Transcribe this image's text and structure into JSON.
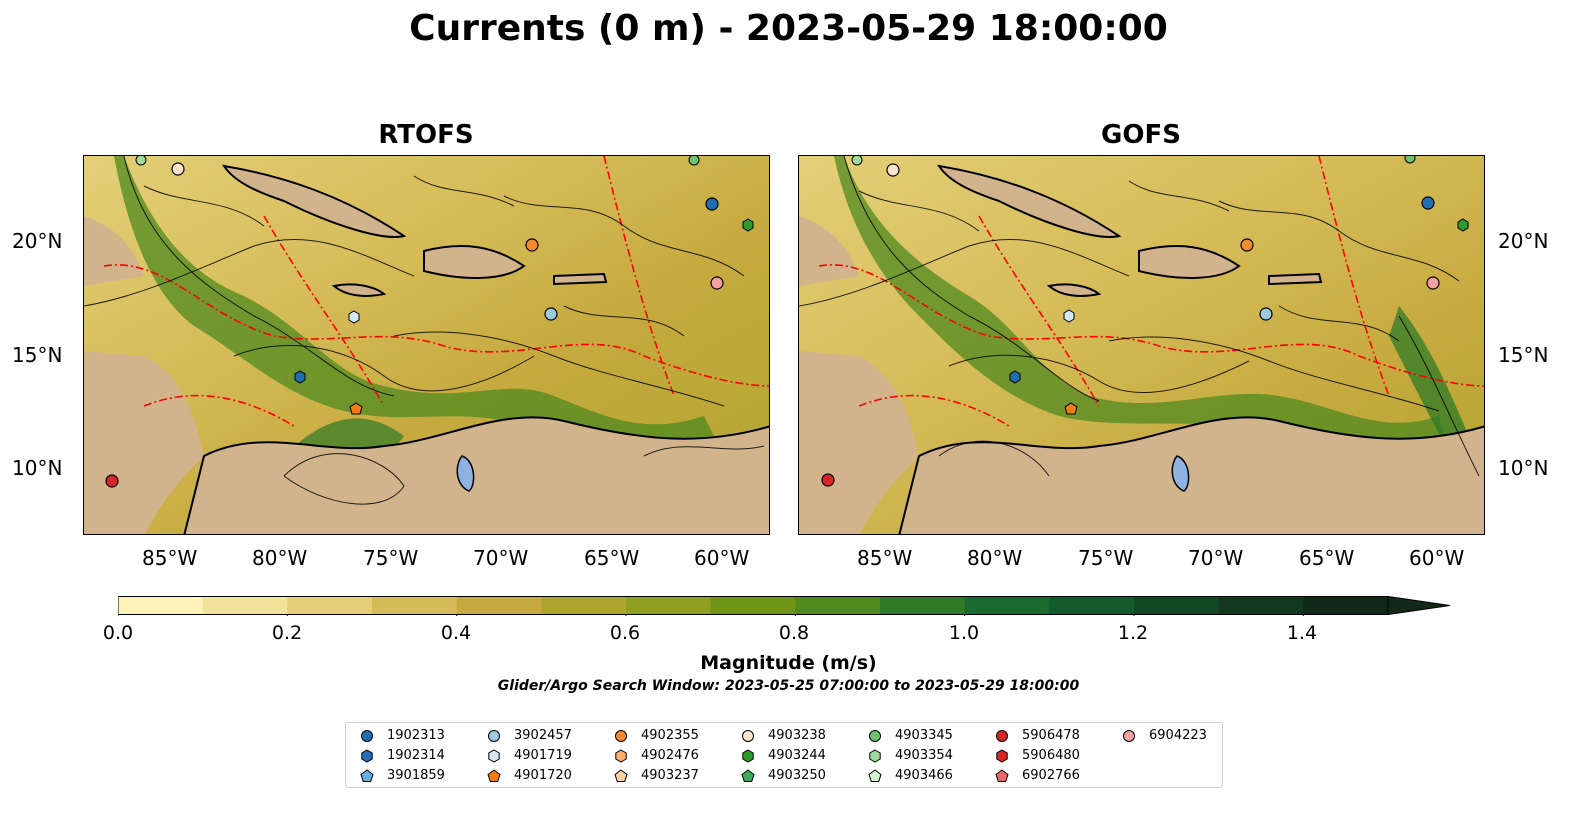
{
  "title": "Currents (0 m) - 2023-05-29 18:00:00",
  "panels": [
    {
      "title": "RTOFS"
    },
    {
      "title": "GOFS"
    }
  ],
  "axes": {
    "lon_labels": [
      "85°W",
      "80°W",
      "75°W",
      "70°W",
      "65°W",
      "60°W"
    ],
    "lat_labels": [
      "20°N",
      "15°N",
      "10°N"
    ]
  },
  "colorbar": {
    "label": "Magnitude (m/s)",
    "tick_labels": [
      "0.0",
      "0.2",
      "0.4",
      "0.6",
      "0.8",
      "1.0",
      "1.2",
      "1.4"
    ],
    "colors": [
      "#fdf3b9",
      "#f1e29a",
      "#e4cf78",
      "#d5bc58",
      "#c6aa3f",
      "#aea52c",
      "#8fa01e",
      "#6f9416",
      "#4f8a1f",
      "#2f7b27",
      "#1b6a2f",
      "#145b2c",
      "#124826",
      "#12391f",
      "#12291a"
    ]
  },
  "search_window": "Glider/Argo Search Window: 2023-05-25 07:00:00 to 2023-05-29 18:00:00",
  "legend": [
    {
      "id": "1902313",
      "marker": "circle",
      "color": "#1f6fb2"
    },
    {
      "id": "1902314",
      "marker": "hexagon",
      "color": "#1f6fb2"
    },
    {
      "id": "3901859",
      "marker": "pentagon",
      "color": "#6aaedb"
    },
    {
      "id": "3902457",
      "marker": "circle",
      "color": "#9ecae1"
    },
    {
      "id": "4901719",
      "marker": "hexagon",
      "color": "#d2e8f5"
    },
    {
      "id": "4901720",
      "marker": "pentagon",
      "color": "#f07c12"
    },
    {
      "id": "4902355",
      "marker": "circle",
      "color": "#f08c2e"
    },
    {
      "id": "4902476",
      "marker": "hexagon",
      "color": "#fdae6b"
    },
    {
      "id": "4903237",
      "marker": "pentagon",
      "color": "#fdd0a2"
    },
    {
      "id": "4903238",
      "marker": "circle",
      "color": "#fde4cd"
    },
    {
      "id": "4903244",
      "marker": "hexagon",
      "color": "#2c9a2c"
    },
    {
      "id": "4903250",
      "marker": "pentagon",
      "color": "#41ab5d"
    },
    {
      "id": "4903345",
      "marker": "circle",
      "color": "#6fc36f"
    },
    {
      "id": "4903354",
      "marker": "hexagon",
      "color": "#a1d99b"
    },
    {
      "id": "4903466",
      "marker": "pentagon",
      "color": "#d6f0cf"
    },
    {
      "id": "5906478",
      "marker": "circle",
      "color": "#d62728"
    },
    {
      "id": "5906480",
      "marker": "hexagon",
      "color": "#d62728"
    },
    {
      "id": "6902766",
      "marker": "pentagon",
      "color": "#e8686e"
    },
    {
      "id": "6904223",
      "marker": "circle",
      "color": "#f4a0a4"
    }
  ],
  "colors": {
    "land": "#d2b48c",
    "lake": "#9cb6d8",
    "eez_line": "#ff0000"
  }
}
